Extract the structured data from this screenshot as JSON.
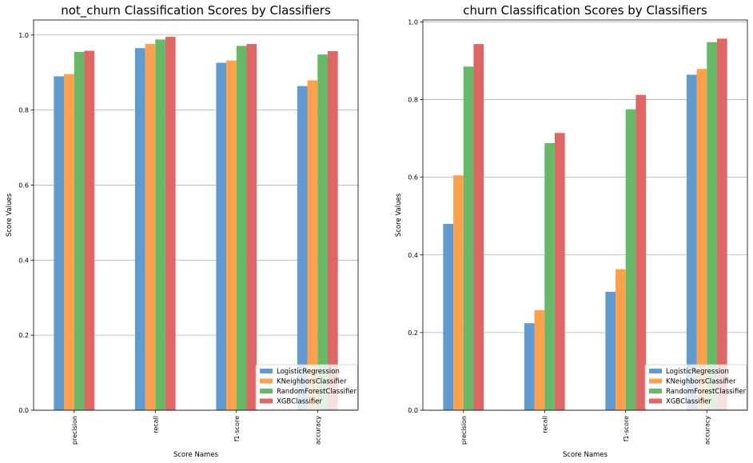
{
  "chart_data": [
    {
      "type": "bar",
      "title": "not_churn Classification Scores by Classifiers",
      "xlabel": "Score Names",
      "ylabel": "Score Values",
      "categories": [
        "precision",
        "recall",
        "f1-score",
        "accuracy"
      ],
      "ylim": [
        0,
        1.04
      ],
      "yticks": [
        "0.0",
        "0.2",
        "0.4",
        "0.6",
        "0.8",
        "1.0"
      ],
      "grid": "horizontal",
      "legend_position": "lower-right",
      "series": [
        {
          "name": "LogisticRegression",
          "color": "#5f9bd0",
          "values": [
            0.89,
            0.965,
            0.926,
            0.864
          ]
        },
        {
          "name": "KNeighborsClassifier",
          "color": "#ffa04a",
          "values": [
            0.896,
            0.976,
            0.932,
            0.879
          ]
        },
        {
          "name": "RandomForestClassifier",
          "color": "#66b966",
          "values": [
            0.955,
            0.988,
            0.971,
            0.948
          ]
        },
        {
          "name": "XGBClassifier",
          "color": "#e06565",
          "values": [
            0.958,
            0.995,
            0.976,
            0.957
          ]
        }
      ]
    },
    {
      "type": "bar",
      "title": "churn Classification Scores by Classifiers",
      "xlabel": "Score Names",
      "ylabel": "Score Values",
      "categories": [
        "precision",
        "recall",
        "f1-score",
        "accuracy"
      ],
      "ylim": [
        0,
        1.005
      ],
      "yticks": [
        "0.0",
        "0.2",
        "0.4",
        "0.6",
        "0.8",
        "1.0"
      ],
      "grid": "horizontal",
      "legend_position": "lower-right",
      "series": [
        {
          "name": "LogisticRegression",
          "color": "#5f9bd0",
          "values": [
            0.48,
            0.224,
            0.305,
            0.864
          ]
        },
        {
          "name": "KNeighborsClassifier",
          "color": "#ffa04a",
          "values": [
            0.605,
            0.258,
            0.363,
            0.879
          ]
        },
        {
          "name": "RandomForestClassifier",
          "color": "#66b966",
          "values": [
            0.885,
            0.688,
            0.775,
            0.948
          ]
        },
        {
          "name": "XGBClassifier",
          "color": "#e06565",
          "values": [
            0.943,
            0.714,
            0.812,
            0.957
          ]
        }
      ]
    }
  ]
}
